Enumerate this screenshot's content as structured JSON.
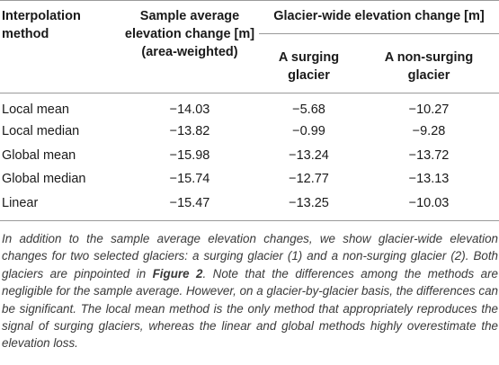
{
  "table": {
    "headers": {
      "method": [
        "Interpolation",
        "method"
      ],
      "sample": [
        "Sample average",
        "elevation change [m]",
        "(area-weighted)"
      ],
      "glacier_group": "Glacier-wide elevation change [m]",
      "surging": [
        "A surging",
        "glacier"
      ],
      "non_surging": [
        "A non-surging",
        "glacier"
      ]
    },
    "rows": [
      {
        "method": "Local mean",
        "sample": "−14.03",
        "surging": "−5.68",
        "non_surging": "−10.27"
      },
      {
        "method": "Local median",
        "sample": "−13.82",
        "surging": "−0.99",
        "non_surging": "−9.28"
      },
      {
        "method": "Global mean",
        "sample": "−15.98",
        "surging": "−13.24",
        "non_surging": "−13.72"
      },
      {
        "method": "Global median",
        "sample": "−15.74",
        "surging": "−12.77",
        "non_surging": "−13.13"
      },
      {
        "method": "Linear",
        "sample": "−15.47",
        "surging": "−13.25",
        "non_surging": "−10.03"
      }
    ]
  },
  "caption": {
    "before_ref": "In addition to the sample average elevation changes, we show glacier-wide elevation changes for two selected glaciers: a surging glacier (1) and a non-surging glacier (2). Both glaciers are pinpointed in ",
    "figure_ref": "Figure 2",
    "after_ref": ". Note that the differences among the methods are negligible for the sample average. However, on a glacier-by-glacier basis, the differences can be significant. The local mean method is the only method that appropriately reproduces the signal of surging glaciers, whereas the linear and global methods highly overestimate the elevation loss."
  }
}
